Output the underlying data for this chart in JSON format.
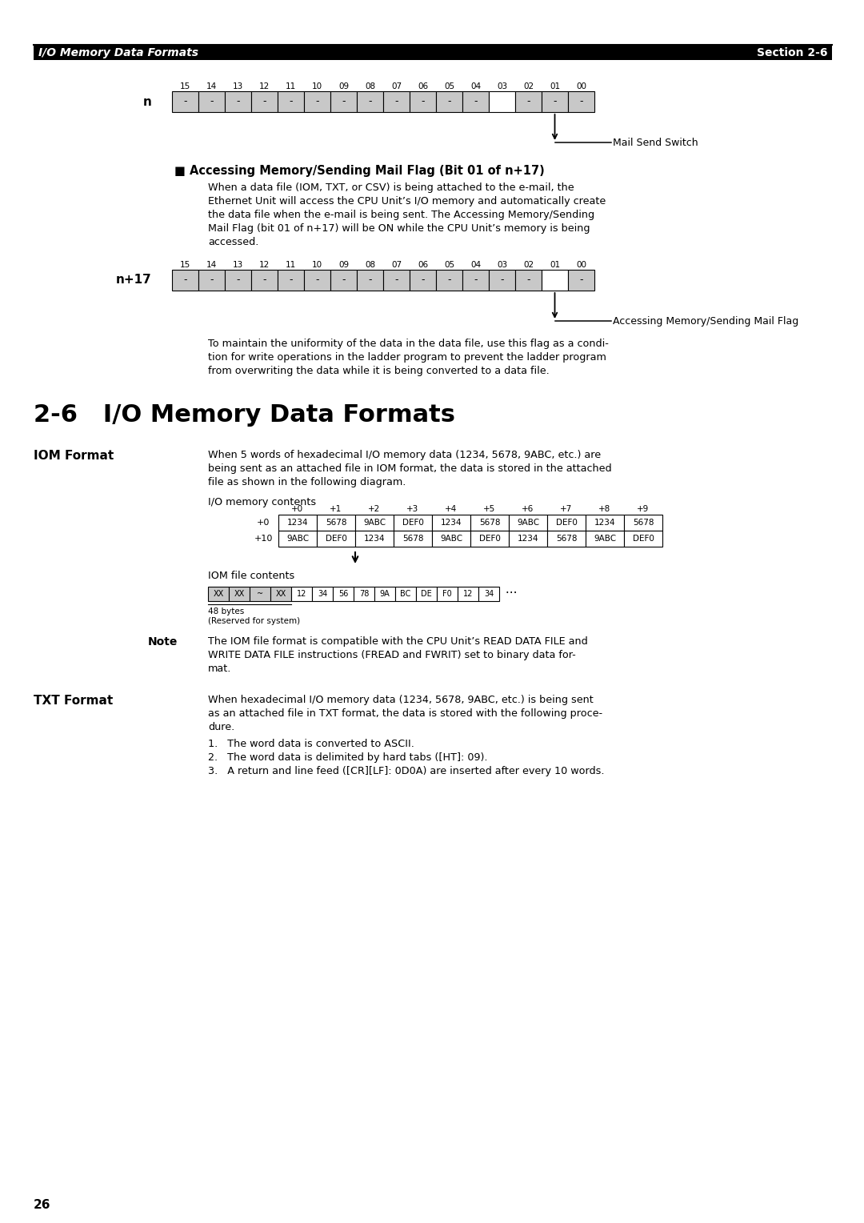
{
  "page_title_left": "I/O Memory Data Formats",
  "page_title_right": "Section 2-6",
  "section_heading": "2-6   I/O Memory Data Formats",
  "background_color": "#ffffff",
  "cell_fill_gray": "#c8c8c8",
  "bit_labels": [
    "15",
    "14",
    "13",
    "12",
    "11",
    "10",
    "09",
    "08",
    "07",
    "06",
    "05",
    "04",
    "03",
    "02",
    "01",
    "00"
  ],
  "n_row_label": "n",
  "n17_row_label": "n+17",
  "mail_send_arrow_label": "Mail Send Switch",
  "accessing_mail_heading": "■ Accessing Memory/Sending Mail Flag (Bit 01 of n+17)",
  "accessing_mail_para_lines": [
    "When a data file (IOM, TXT, or CSV) is being attached to the e-mail, the",
    "Ethernet Unit will access the CPU Unit’s I/O memory and automatically create",
    "the data file when the e-mail is being sent. The Accessing Memory/Sending",
    "Mail Flag (bit 01 of n+17) will be ON while the CPU Unit’s memory is being",
    "accessed."
  ],
  "accessing_flag_label": "Accessing Memory/Sending Mail Flag",
  "maintain_para_lines": [
    "To maintain the uniformity of the data in the data file, use this flag as a condi-",
    "tion for write operations in the ladder program to prevent the ladder program",
    "from overwriting the data while it is being converted to a data file."
  ],
  "iom_format_label": "IOM Format",
  "iom_format_para_lines": [
    "When 5 words of hexadecimal I/O memory data (1234, 5678, 9ABC, etc.) are",
    "being sent as an attached file in IOM format, the data is stored in the attached",
    "file as shown in the following diagram."
  ],
  "io_memory_label": "I/O memory contents",
  "iom_col_headers": [
    "+0",
    "+1",
    "+2",
    "+3",
    "+4",
    "+5",
    "+6",
    "+7",
    "+8",
    "+9"
  ],
  "iom_row0_label": "+0",
  "iom_row1_label": "+10",
  "iom_row0": [
    "1234",
    "5678",
    "9ABC",
    "DEF0",
    "1234",
    "5678",
    "9ABC",
    "DEF0",
    "1234",
    "5678"
  ],
  "iom_row1": [
    "9ABC",
    "DEF0",
    "1234",
    "5678",
    "9ABC",
    "DEF0",
    "1234",
    "5678",
    "9ABC",
    "DEF0"
  ],
  "iom_file_label": "IOM file contents",
  "iom_file_gray": [
    "XX",
    "XX",
    "~",
    "XX"
  ],
  "iom_file_white": [
    "12",
    "34",
    "56",
    "78",
    "9A",
    "BC",
    "DE",
    "F0",
    "12",
    "34"
  ],
  "iom_file_dots": " ···",
  "iom_48bytes": "48 bytes\n(Reserved for system)",
  "note_label": "Note",
  "note_lines": [
    "The IOM file format is compatible with the CPU Unit’s READ DATA FILE and",
    "WRITE DATA FILE instructions (FREAD and FWRIT) set to binary data for-",
    "mat."
  ],
  "txt_format_label": "TXT Format",
  "txt_format_para_lines": [
    "When hexadecimal I/O memory data (1234, 5678, 9ABC, etc.) is being sent",
    "as an attached file in TXT format, the data is stored with the following proce-",
    "dure."
  ],
  "txt_list": [
    "1.   The word data is converted to ASCII.",
    "2.   The word data is delimited by hard tabs ([HT]: 09).",
    "3.   A return and line feed ([CR][LF]: 0D0A) are inserted after every 10 words."
  ],
  "page_number": "26"
}
